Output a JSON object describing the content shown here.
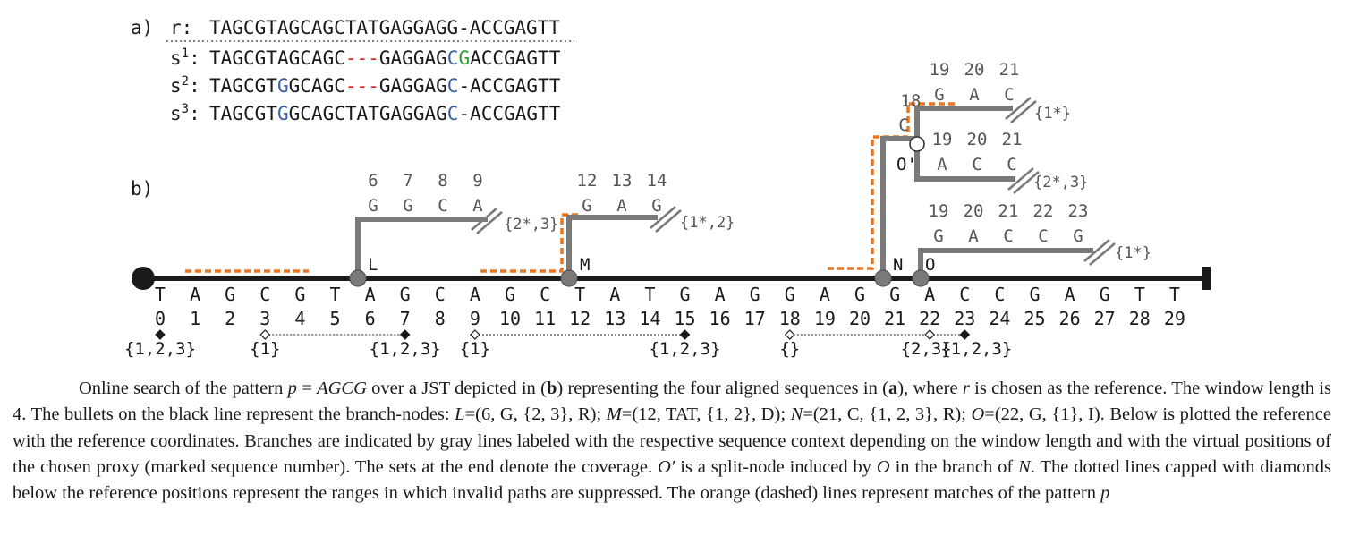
{
  "panel_a": {
    "label": "a)",
    "rows": [
      {
        "name": "r",
        "sup": "",
        "colon": ":",
        "seq": "TAGCGTAGCAGCTATGAGGAGG-ACCGAGTT"
      },
      {
        "name": "s",
        "sup": "1",
        "colon": ":",
        "seq": "TAGCGTAGCAGC---GAGGAGCGACCGAGTT"
      },
      {
        "name": "s",
        "sup": "2",
        "colon": ":",
        "seq": "TAGCGTGGCAGC---GAGGAGC-ACCGAGTT"
      },
      {
        "name": "s",
        "sup": "3",
        "colon": ":",
        "seq": "TAGCGTGGCAGCTATGAGGAGC-ACCGAGTT"
      }
    ]
  },
  "panel_b": {
    "label": "b)",
    "reference_letters": [
      "T",
      "A",
      "G",
      "C",
      "G",
      "T",
      "A",
      "G",
      "C",
      "A",
      "G",
      "C",
      "T",
      "A",
      "T",
      "G",
      "A",
      "G",
      "G",
      "A",
      "G",
      "G",
      "A",
      "C",
      "C",
      "G",
      "A",
      "G",
      "T",
      "T"
    ],
    "reference_positions": [
      "0",
      "1",
      "2",
      "3",
      "4",
      "5",
      "6",
      "7",
      "8",
      "9",
      "10",
      "11",
      "12",
      "13",
      "14",
      "15",
      "16",
      "17",
      "18",
      "19",
      "20",
      "21",
      "22",
      "23",
      "24",
      "25",
      "26",
      "27",
      "28",
      "29"
    ],
    "nodes": [
      {
        "label": "L",
        "pos": 6
      },
      {
        "label": "M",
        "pos": 12
      },
      {
        "label": "N",
        "pos": 21
      },
      {
        "label": "O",
        "pos": 22
      },
      {
        "label": "O'",
        "pos": 21.6
      }
    ],
    "branches": [
      {
        "id": "L",
        "positions": [
          "6",
          "7",
          "8",
          "9"
        ],
        "letters": [
          "G",
          "G",
          "C",
          "A"
        ],
        "coverage": "{2*,3}"
      },
      {
        "id": "M",
        "positions": [
          "12",
          "13",
          "14"
        ],
        "letters": [
          "G",
          "A",
          "G"
        ],
        "coverage": "{1*,2}"
      },
      {
        "id": "O-prime-upper",
        "positions": [
          "18",
          "19",
          "20",
          "21"
        ],
        "letters": [
          "C",
          "G",
          "A",
          "C"
        ],
        "coverage": "{1*}"
      },
      {
        "id": "O-prime-lower",
        "positions": [
          "19",
          "20",
          "21"
        ],
        "letters": [
          "A",
          "C",
          "C"
        ],
        "coverage": "{2*,3}"
      },
      {
        "id": "O",
        "positions": [
          "19",
          "20",
          "21",
          "22",
          "23"
        ],
        "letters": [
          "G",
          "A",
          "C",
          "C",
          "G"
        ],
        "coverage": "{1*}"
      }
    ],
    "coverage_markers": [
      {
        "pos": 0,
        "type": "filled",
        "label": "{1,2,3}"
      },
      {
        "pos": 3,
        "type": "open",
        "label": "{1}"
      },
      {
        "pos": 7,
        "type": "filled",
        "label": "{1,2,3}"
      },
      {
        "pos": 9,
        "type": "open",
        "label": "{1}"
      },
      {
        "pos": 15,
        "type": "filled",
        "label": "{1,2,3}"
      },
      {
        "pos": 18,
        "type": "open",
        "label": "{}"
      },
      {
        "pos": 22,
        "type": "open",
        "label": "{2,3}"
      },
      {
        "pos": 23,
        "type": "filled",
        "label": "{1,2,3}"
      }
    ],
    "suppressed_ranges": [
      [
        3,
        7
      ],
      [
        9,
        15
      ],
      [
        18,
        23
      ]
    ],
    "colors": {
      "reference_line": "#1a1a1a",
      "branch": "#7a7a7a",
      "match": "#e87722",
      "node": "#7a7a7a",
      "deletion": "#d62728",
      "substitution_green": "#2ca02c",
      "substitution_blue": "#3b5fa8"
    }
  },
  "caption": {
    "p1": "Online search of the pattern ",
    "p_var": "p",
    "p2": " = ",
    "p_val": "AGCG",
    "p3": " over a JST depicted in (",
    "b1": "b",
    "p4": ") representing the four aligned sequences in (",
    "b2": "a",
    "p5": "), where ",
    "r_var": "r",
    "p6": " is chosen as the reference. The window length is 4. The bullets on the black line represent the branch-nodes: ",
    "L_var": "L",
    "L_def": "=(6, G, {2, 3}, R); ",
    "M_var": "M",
    "M_def": "=(12, TAT, {1, 2}, D); ",
    "N_var": "N",
    "N_def": "=(21, C, {1, 2, 3}, R); ",
    "O_var": "O",
    "O_def": "=(22, G, {1}, I). Below is plotted the reference with the reference coordinates. Branches are indicated by gray lines labeled with the respective sequence context depending on the window length and with the virtual positions of the chosen proxy (marked sequence number). The sets at the end denote the coverage. ",
    "Op_var": "O′",
    "p7": " is a split-node induced by ",
    "O2_var": "O",
    "p8": " in the branch of ",
    "N2_var": "N",
    "p9": ". The dotted lines capped with diamonds below the reference positions represent the ranges in which invalid paths are suppressed. The orange (dashed) lines represent matches of the pattern ",
    "p_end": "p"
  }
}
